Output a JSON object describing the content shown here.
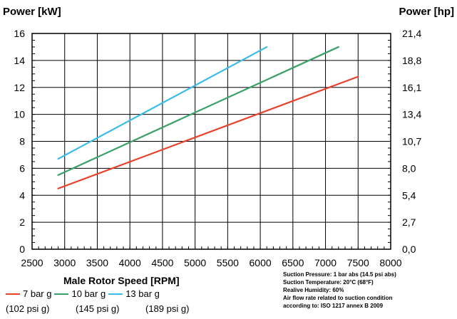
{
  "chart_data": {
    "type": "line",
    "left_axis_title": "Power [kW]",
    "right_axis_title": "Power [hp]",
    "xlabel": "Male Rotor Speed [RPM]",
    "xlim": [
      2500,
      8000
    ],
    "ylim": [
      0,
      16
    ],
    "x_ticks": [
      "2500",
      "3000",
      "3500",
      "4000",
      "4500",
      "5000",
      "5500",
      "6000",
      "6500",
      "7000",
      "7500",
      "8000"
    ],
    "y_ticks_left": [
      "0",
      "2",
      "4",
      "6",
      "8",
      "10",
      "12",
      "14",
      "16"
    ],
    "y_ticks_right": [
      "0,0",
      "2,7",
      "5,4",
      "8,0",
      "10,7",
      "13,4",
      "16,1",
      "18,8",
      "21,4"
    ],
    "grid": true,
    "series": [
      {
        "name": "7 bar g",
        "sub": "(102 psi g)",
        "color": "#e8412c",
        "x": [
          2900,
          7500
        ],
        "y": [
          4.5,
          12.8
        ]
      },
      {
        "name": "10 bar g",
        "sub": "(145 psi g)",
        "color": "#3aa06a",
        "x": [
          2900,
          7200
        ],
        "y": [
          5.5,
          15.0
        ]
      },
      {
        "name": "13 bar g",
        "sub": "(189 psi g)",
        "color": "#3bbbe8",
        "x": [
          2900,
          6100
        ],
        "y": [
          6.7,
          15.0
        ]
      }
    ],
    "notes": [
      "Suction Pressure:   1 bar abs (14.5 psi abs)",
      "Suction Temperature:  20°C (68°F)",
      "Realive Humidity:  60%",
      "Air flow rate related to suction condition",
      "according to:  ISO 1217 annex B 2009"
    ]
  }
}
